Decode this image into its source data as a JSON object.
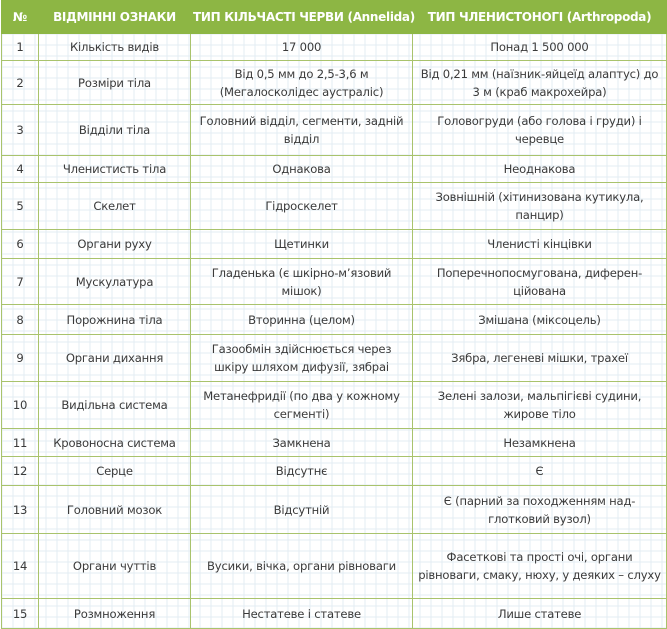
{
  "header": [
    "№",
    "ВІДМІННІ ОЗНАКИ",
    "ТИП КІЛЬЧАСТІ ЧЕРВИ (Annelida)",
    "ТИП ЧЛЕНИСТОНОГІ (Arthropoda)"
  ],
  "colors": {
    "header_bg": "#8db644",
    "border": "#a9c36c",
    "grid": "#e3ecf3"
  },
  "rows": [
    [
      "1",
      "Кількість видів",
      "17 000",
      "Понад 1 500 000"
    ],
    [
      "2",
      "Розміри тіла",
      "Від 0,5 мм до 2,5-3,6 м (Мегалосколідес аустраліс)",
      "Від 0,21 мм (наїзник-яйцеїд алаптус) до 3 м (краб макрохейра)"
    ],
    [
      "3",
      "Відділи тіла",
      "Головний відділ, сегменти, задній відділ",
      "Головогруди (або голова і груди) і черевце"
    ],
    [
      "4",
      "Членистисть тіла",
      "Однакова",
      "Неоднакова"
    ],
    [
      "5",
      "Скелет",
      "Гідроскелет",
      "Зовнішній (хітинизована кутикула, панцир)"
    ],
    [
      "6",
      "Органи руху",
      "Щетинки",
      "Членисті кінцівки"
    ],
    [
      "7",
      "Мускулатура",
      "Гладенька (є шкірно-м’язовий мішок)",
      "Поперечнопосмугована, диферен-ційована"
    ],
    [
      "8",
      "Порожнина тіла",
      "Вторинна (целом)",
      "Змішана (міксоцель)"
    ],
    [
      "9",
      "Органи дихання",
      "Газообмін здійснюється через шкіру шляхом дифузії, зябраі",
      "Зябра, легеневі мішки, трахеї"
    ],
    [
      "10",
      "Видільна система",
      "Метанефридії (по два у кожному сегменті)",
      "Зелені залози, мальпігієві судини, жирове тіло"
    ],
    [
      "11",
      "Кровоносна система",
      "Замкнена",
      "Незамкнена"
    ],
    [
      "12",
      "Серце",
      "Відсутнє",
      "Є"
    ],
    [
      "13",
      "Головний мозок",
      "Відсутній",
      "Є (парний за походженням над-глотковий вузол)"
    ],
    [
      "14",
      "Органи чуттів",
      "Вусики, вічка, органи рівноваги",
      "Фасеткові та прості очі, органи рівноваги, смаку, нюху, у деяких – слуху"
    ],
    [
      "15",
      "Розмноження",
      "Нестатеве і статеве",
      "Лише статеве"
    ]
  ]
}
